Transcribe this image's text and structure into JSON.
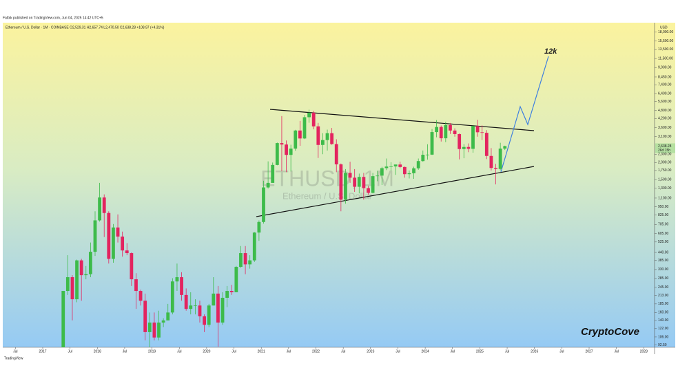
{
  "published_by": "Fatbik published on TradingView.com, Jun 04, 2025 14:42 UTC+5",
  "watermark": "ETHUSD, 1M",
  "watermark_sub": "Ethereum / U.S. Dollar",
  "annotation": "12k",
  "brand": "CryptoCove",
  "footer": "TradingView",
  "currency": "USD",
  "last_price_label": "2,638.28",
  "countdown": "26d 15h",
  "chart_data": {
    "type": "candlestick",
    "title": "Ethereum / U.S. Dollar · 1M · COINBASE  O2,529.31 H2,657.74 L2,470.50 C2,638.28 +108.97 (+4.31%)",
    "log_scale": true,
    "up_color": "#3dbb4a",
    "down_color": "#e3245f",
    "ylim": [
      88,
      19000
    ],
    "yticks": [
      {
        "value": 18000,
        "label": "18,000.00"
      },
      {
        "value": 15500,
        "label": "15,500.00"
      },
      {
        "value": 13500,
        "label": "13,500.00"
      },
      {
        "value": 11500,
        "label": "11,500.00"
      },
      {
        "value": 9900,
        "label": "9,900.00"
      },
      {
        "value": 8450,
        "label": "8,450.00"
      },
      {
        "value": 7400,
        "label": "7,400.00"
      },
      {
        "value": 6400,
        "label": "6,400.00"
      },
      {
        "value": 5600,
        "label": "5,600.00"
      },
      {
        "value": 4800,
        "label": "4,800.00"
      },
      {
        "value": 4200,
        "label": "4,200.00"
      },
      {
        "value": 3600,
        "label": "3,600.00"
      },
      {
        "value": 3100,
        "label": "3,100.00"
      },
      {
        "value": 2300,
        "label": "2,300.00"
      },
      {
        "value": 2000,
        "label": "2,000.00"
      },
      {
        "value": 1750,
        "label": "1,750.00"
      },
      {
        "value": 1500,
        "label": "1,500.00"
      },
      {
        "value": 1300,
        "label": "1,300.00"
      },
      {
        "value": 1100,
        "label": "1,100.00"
      },
      {
        "value": 950,
        "label": "950.00"
      },
      {
        "value": 825,
        "label": "825.00"
      },
      {
        "value": 705,
        "label": "705.00"
      },
      {
        "value": 605,
        "label": "605.00"
      },
      {
        "value": 525,
        "label": "525.00"
      },
      {
        "value": 440,
        "label": "440.00"
      },
      {
        "value": 385,
        "label": "385.00"
      },
      {
        "value": 330,
        "label": "330.00"
      },
      {
        "value": 285,
        "label": "285.00"
      },
      {
        "value": 245,
        "label": "245.00"
      },
      {
        "value": 213,
        "label": "213.00"
      },
      {
        "value": 185,
        "label": "185.00"
      },
      {
        "value": 160,
        "label": "160.00"
      },
      {
        "value": 140,
        "label": "140.00"
      },
      {
        "value": 122,
        "label": "122.00"
      },
      {
        "value": 106,
        "label": "106.00"
      },
      {
        "value": 92.5,
        "label": "92.50"
      }
    ],
    "xticks": [
      {
        "value": "2016-07",
        "label": "Jul"
      },
      {
        "value": "2017-01",
        "label": "2017"
      },
      {
        "value": "2017-07",
        "label": "Jul"
      },
      {
        "value": "2018-01",
        "label": "2018"
      },
      {
        "value": "2018-07",
        "label": "Jul"
      },
      {
        "value": "2019-01",
        "label": "2019"
      },
      {
        "value": "2019-07",
        "label": "Jul"
      },
      {
        "value": "2020-01",
        "label": "2020"
      },
      {
        "value": "2020-07",
        "label": "Jul"
      },
      {
        "value": "2021-01",
        "label": "2021"
      },
      {
        "value": "2021-07",
        "label": "Jul"
      },
      {
        "value": "2022-01",
        "label": "2022"
      },
      {
        "value": "2022-07",
        "label": "Jul"
      },
      {
        "value": "2023-01",
        "label": "2023"
      },
      {
        "value": "2023-07",
        "label": "Jul"
      },
      {
        "value": "2024-01",
        "label": "2024"
      },
      {
        "value": "2024-07",
        "label": "Jul"
      },
      {
        "value": "2025-01",
        "label": "2025"
      },
      {
        "value": "2025-07",
        "label": "Jul"
      },
      {
        "value": "2026-01",
        "label": "2026"
      },
      {
        "value": "2026-07",
        "label": "Jul"
      },
      {
        "value": "2027-01",
        "label": "2027"
      },
      {
        "value": "2027-07",
        "label": "Jul"
      },
      {
        "value": "2028-01",
        "label": "2028"
      }
    ],
    "x": [
      "2017-05",
      "2017-06",
      "2017-07",
      "2017-08",
      "2017-09",
      "2017-10",
      "2017-11",
      "2017-12",
      "2018-01",
      "2018-02",
      "2018-03",
      "2018-04",
      "2018-05",
      "2018-06",
      "2018-07",
      "2018-08",
      "2018-09",
      "2018-10",
      "2018-11",
      "2018-12",
      "2019-01",
      "2019-02",
      "2019-03",
      "2019-04",
      "2019-05",
      "2019-06",
      "2019-07",
      "2019-08",
      "2019-09",
      "2019-10",
      "2019-11",
      "2019-12",
      "2020-01",
      "2020-02",
      "2020-03",
      "2020-04",
      "2020-05",
      "2020-06",
      "2020-07",
      "2020-08",
      "2020-09",
      "2020-10",
      "2020-11",
      "2020-12",
      "2021-01",
      "2021-02",
      "2021-03",
      "2021-04",
      "2021-05",
      "2021-06",
      "2021-07",
      "2021-08",
      "2021-09",
      "2021-10",
      "2021-11",
      "2021-12",
      "2022-01",
      "2022-02",
      "2022-03",
      "2022-04",
      "2022-05",
      "2022-06",
      "2022-07",
      "2022-08",
      "2022-09",
      "2022-10",
      "2022-11",
      "2022-12",
      "2023-01",
      "2023-02",
      "2023-03",
      "2023-04",
      "2023-05",
      "2023-06",
      "2023-07",
      "2023-08",
      "2023-09",
      "2023-10",
      "2023-11",
      "2023-12",
      "2024-01",
      "2024-02",
      "2024-03",
      "2024-04",
      "2024-05",
      "2024-06",
      "2024-07",
      "2024-08",
      "2024-09",
      "2024-10",
      "2024-11",
      "2024-12",
      "2025-01",
      "2025-02",
      "2025-03",
      "2025-04",
      "2025-05",
      "2025-06"
    ],
    "open": [
      80,
      230,
      290,
      200,
      385,
      300,
      305,
      445,
      755,
      1110,
      855,
      395,
      670,
      575,
      455,
      435,
      280,
      230,
      195,
      115,
      135,
      105,
      135,
      140,
      160,
      270,
      290,
      215,
      170,
      180,
      180,
      150,
      130,
      180,
      220,
      135,
      205,
      230,
      225,
      345,
      435,
      360,
      385,
      615,
      735,
      1315,
      1420,
      1920,
      2775,
      2710,
      2275,
      2530,
      3430,
      3000,
      4290,
      4630,
      3680,
      2690,
      2920,
      3280,
      2730,
      1940,
      1070,
      1680,
      1550,
      1330,
      1570,
      1300,
      1200,
      1590,
      1605,
      1820,
      1870,
      1875,
      1935,
      1855,
      1645,
      1670,
      1815,
      2050,
      2280,
      2285,
      3340,
      3640,
      3010,
      3760,
      3430,
      3230,
      2510,
      2600,
      2520,
      3700,
      3330,
      3300,
      2235,
      1825,
      1795,
      2529.31
    ],
    "high": [
      230,
      420,
      300,
      390,
      395,
      350,
      520,
      880,
      1420,
      1170,
      880,
      710,
      835,
      625,
      515,
      440,
      310,
      235,
      220,
      160,
      160,
      165,
      145,
      185,
      285,
      365,
      315,
      240,
      225,
      200,
      195,
      155,
      185,
      290,
      250,
      225,
      250,
      255,
      350,
      490,
      490,
      420,
      620,
      755,
      1470,
      2040,
      2000,
      2800,
      4375,
      2900,
      2700,
      3470,
      4030,
      4460,
      4870,
      4780,
      3900,
      3280,
      3480,
      3580,
      2960,
      1970,
      1790,
      2030,
      1790,
      1660,
      1680,
      1350,
      1680,
      1740,
      1860,
      2140,
      2010,
      1930,
      2030,
      1870,
      1750,
      1865,
      2140,
      2450,
      2720,
      3520,
      4090,
      3730,
      3980,
      3890,
      3560,
      3260,
      2730,
      2760,
      3690,
      4110,
      3740,
      3450,
      2550,
      1960,
      2790,
      2657.74
    ],
    "low": [
      80,
      215,
      140,
      190,
      195,
      280,
      290,
      415,
      740,
      570,
      365,
      370,
      520,
      410,
      420,
      250,
      170,
      180,
      100,
      82,
      100,
      100,
      125,
      140,
      155,
      230,
      195,
      165,
      155,
      155,
      135,
      115,
      125,
      180,
      90,
      130,
      175,
      215,
      225,
      340,
      305,
      335,
      375,
      535,
      715,
      1290,
      1450,
      1910,
      1725,
      1700,
      1720,
      2440,
      2650,
      2970,
      3910,
      3500,
      2160,
      2300,
      2450,
      2700,
      1700,
      880,
      1000,
      1420,
      1220,
      1190,
      1070,
      1160,
      1190,
      1460,
      1370,
      1760,
      1740,
      1625,
      1820,
      1550,
      1530,
      1520,
      1770,
      2030,
      2100,
      2270,
      3060,
      2850,
      2820,
      3240,
      3090,
      2110,
      2150,
      2380,
      2360,
      3090,
      2920,
      2120,
      1750,
      1385,
      1750,
      2470.5
    ],
    "close": [
      230,
      290,
      200,
      385,
      300,
      305,
      445,
      755,
      1110,
      855,
      395,
      670,
      575,
      455,
      435,
      280,
      230,
      195,
      115,
      135,
      105,
      135,
      140,
      160,
      270,
      290,
      215,
      170,
      180,
      180,
      150,
      130,
      180,
      220,
      135,
      205,
      230,
      225,
      345,
      435,
      360,
      385,
      615,
      735,
      1315,
      1420,
      1920,
      2775,
      2710,
      2275,
      2530,
      3430,
      3000,
      4290,
      4630,
      3680,
      2690,
      2920,
      3280,
      2730,
      1940,
      1070,
      1680,
      1550,
      1330,
      1570,
      1300,
      1200,
      1590,
      1605,
      1820,
      1870,
      1875,
      1935,
      1855,
      1645,
      1670,
      1815,
      2050,
      2280,
      2285,
      3340,
      3640,
      3010,
      3760,
      3430,
      3230,
      2510,
      2600,
      2520,
      3700,
      3330,
      3300,
      2235,
      1825,
      1795,
      2530,
      2638.28
    ]
  }
}
